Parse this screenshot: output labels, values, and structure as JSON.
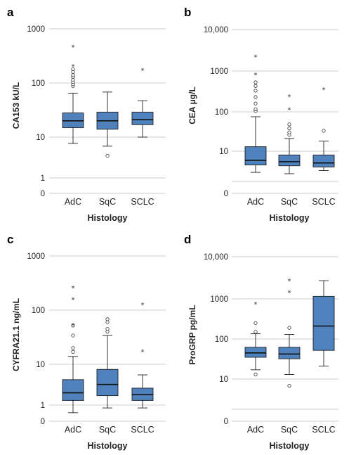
{
  "chart_data": [
    {
      "type": "box",
      "panel": "a",
      "ylabel": "CA153 kU/L",
      "xlabel": "Histology",
      "scale": "log",
      "yticks": [
        0,
        1,
        10,
        100,
        1000
      ],
      "ytick_labels": [
        "0",
        "1",
        "10",
        "100",
        "1000"
      ],
      "grid": [
        1,
        10,
        100,
        1000
      ],
      "categories": [
        "AdC",
        "SqC",
        "SCLC"
      ],
      "boxes": [
        {
          "whisker_low": 7,
          "q1": 15,
          "median": 20,
          "q3": 28,
          "whisker_high": 65,
          "outliers": [
            88,
            95,
            105,
            115,
            130,
            140,
            160,
            180
          ],
          "extremes": [
            210,
            480
          ]
        },
        {
          "whisker_low": 6,
          "q1": 14,
          "median": 20,
          "q3": 29,
          "whisker_high": 68,
          "outliers": [
            3.5
          ],
          "extremes": []
        },
        {
          "whisker_low": 10,
          "q1": 17,
          "median": 21,
          "q3": 29,
          "whisker_high": 47,
          "outliers": [],
          "extremes": [
            180
          ]
        }
      ]
    },
    {
      "type": "box",
      "panel": "b",
      "ylabel": "CEA μg/L",
      "xlabel": "Histology",
      "scale": "log",
      "yticks": [
        0,
        10,
        100,
        1000,
        10000
      ],
      "ytick_labels": [
        "0",
        "10",
        "100",
        "1000",
        "10,000"
      ],
      "grid": [
        1,
        10,
        100,
        1000,
        10000
      ],
      "categories": [
        "AdC",
        "SqC",
        "SCLC"
      ],
      "boxes": [
        {
          "whisker_low": 2,
          "q1": 3.5,
          "median": 5,
          "q3": 13,
          "whisker_high": 75,
          "outliers": [
            105,
            115,
            160,
            230,
            330,
            430,
            530
          ],
          "extremes": [
            850,
            2300
          ]
        },
        {
          "whisker_low": 1.8,
          "q1": 3.3,
          "median": 4.5,
          "q3": 7.5,
          "whisker_high": 21,
          "outliers": [
            26,
            30,
            38,
            48
          ],
          "extremes": [
            120,
            250
          ]
        },
        {
          "whisker_low": 2.3,
          "q1": 3,
          "median": 4.1,
          "q3": 7.5,
          "whisker_high": 18,
          "outliers": [
            33
          ],
          "extremes": [
            370
          ]
        }
      ]
    },
    {
      "type": "box",
      "panel": "c",
      "ylabel": "CYFRA21.1 ng/mL",
      "xlabel": "Histology",
      "scale": "log",
      "yticks": [
        0,
        1,
        10,
        100,
        1000
      ],
      "ytick_labels": [
        "0",
        "1",
        "10",
        "100",
        "1000"
      ],
      "grid": [
        1,
        10,
        100,
        1000
      ],
      "categories": [
        "AdC",
        "SqC",
        "SCLC"
      ],
      "boxes": [
        {
          "whisker_low": 0.65,
          "q1": 1.3,
          "median": 2,
          "q3": 4.2,
          "whisker_high": 14,
          "outliers": [
            17,
            20,
            34,
            52
          ],
          "extremes": [
            55,
            165,
            270
          ]
        },
        {
          "whisker_low": 0.85,
          "q1": 1.7,
          "median": 3.2,
          "q3": 7.5,
          "whisker_high": 34,
          "outliers": [
            40,
            45,
            60,
            68
          ],
          "extremes": []
        },
        {
          "whisker_low": 0.85,
          "q1": 1.3,
          "median": 1.8,
          "q3": 2.6,
          "whisker_high": 5.5,
          "outliers": [],
          "extremes": [
            18,
            130
          ]
        }
      ]
    },
    {
      "type": "box",
      "panel": "d",
      "ylabel": "ProGRP pg/mL",
      "xlabel": "Histology",
      "scale": "log",
      "yticks": [
        0,
        10,
        100,
        1000,
        10000
      ],
      "ytick_labels": [
        "0",
        "10",
        "100",
        "1000",
        "10,000"
      ],
      "grid": [
        1,
        10,
        100,
        1000,
        10000
      ],
      "categories": [
        "AdC",
        "SqC",
        "SCLC"
      ],
      "boxes": [
        {
          "whisker_low": 17,
          "q1": 35,
          "median": 45,
          "q3": 62,
          "whisker_high": 135,
          "outliers": [
            13,
            150,
            250
          ],
          "extremes": [
            780
          ]
        },
        {
          "whisker_low": 13,
          "q1": 32,
          "median": 42,
          "q3": 62,
          "whisker_high": 130,
          "outliers": [
            6,
            190
          ],
          "extremes": [
            1500,
            2800
          ]
        },
        {
          "whisker_low": 21,
          "q1": 52,
          "median": 210,
          "q3": 1150,
          "whisker_high": 2700,
          "outliers": [],
          "extremes": []
        }
      ]
    }
  ]
}
